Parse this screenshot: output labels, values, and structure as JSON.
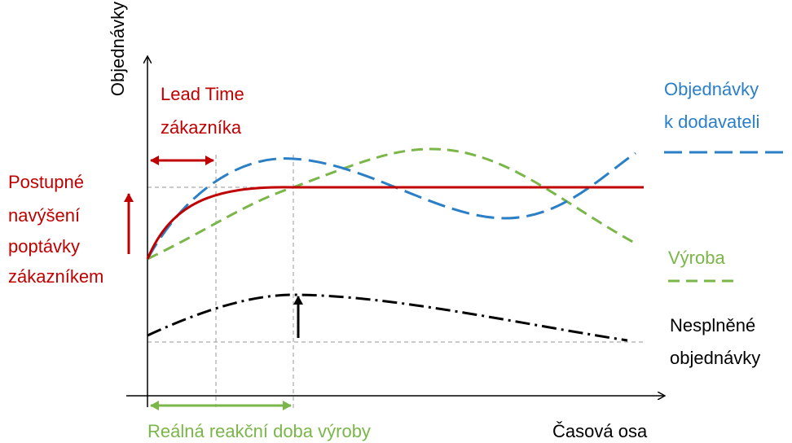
{
  "axis_labels": {
    "y": "Objednávky",
    "x": "Časová osa"
  },
  "annotations": {
    "lead_time": [
      "Lead Time",
      "zákazníka"
    ],
    "demand_increase": [
      "Postupné",
      "navýšení",
      "poptávky",
      "zákazníkem"
    ],
    "real_reaction": "Reálná reakční doba výroby"
  },
  "legend": {
    "supplier_orders": [
      "Objednávky",
      "k dodavateli"
    ],
    "production": [
      "Výroba"
    ],
    "unfulfilled": [
      "Nesplněné",
      "objednávky"
    ]
  }
}
